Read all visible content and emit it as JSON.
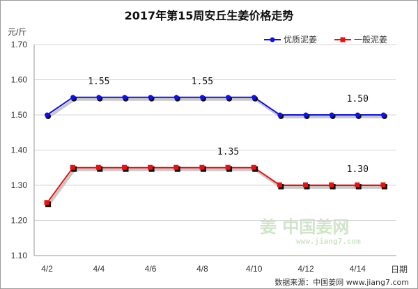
{
  "chart_data": {
    "type": "line",
    "title": "2017年第15周安丘生姜价格走势",
    "ylabel": "元/斤",
    "xlabel": "日期",
    "ylim": [
      1.1,
      1.7
    ],
    "yticks": [
      "1.10",
      "1.20",
      "1.30",
      "1.40",
      "1.50",
      "1.60",
      "1.70"
    ],
    "xtick_labels": [
      "4/2",
      "4/4",
      "4/6",
      "4/8",
      "4/10",
      "4/12",
      "4/14"
    ],
    "grid": "horizontal",
    "legend_position": "top-right",
    "x": [
      "4/2",
      "4/3",
      "4/4",
      "4/5",
      "4/6",
      "4/7",
      "4/8",
      "4/9",
      "4/10",
      "4/11",
      "4/12",
      "4/13",
      "4/14",
      "4/15"
    ],
    "series": [
      {
        "name": "优质泥姜",
        "color": "#1010ee",
        "marker": "circle",
        "values": [
          1.5,
          1.55,
          1.55,
          1.55,
          1.55,
          1.55,
          1.55,
          1.55,
          1.55,
          1.5,
          1.5,
          1.5,
          1.5,
          1.5
        ]
      },
      {
        "name": "一般泥姜",
        "color": "#ee1010",
        "marker": "square",
        "values": [
          1.25,
          1.35,
          1.35,
          1.35,
          1.35,
          1.35,
          1.35,
          1.35,
          1.35,
          1.3,
          1.3,
          1.3,
          1.3,
          1.3
        ]
      }
    ],
    "annotations": [
      {
        "text": "1.55",
        "x": "4/4",
        "y": 1.55,
        "series": 0
      },
      {
        "text": "1.55",
        "x": "4/8",
        "y": 1.55,
        "series": 0
      },
      {
        "text": "1.50",
        "x": "4/14",
        "y": 1.5,
        "series": 0
      },
      {
        "text": "1.35",
        "x": "4/9",
        "y": 1.35,
        "series": 1
      },
      {
        "text": "1.30",
        "x": "4/14",
        "y": 1.3,
        "series": 1
      }
    ]
  },
  "watermark": {
    "cn": "姜 中国姜网",
    "url": "www.jiang7.com"
  },
  "source": "数据来源：中国姜网 www.jiang7.com"
}
